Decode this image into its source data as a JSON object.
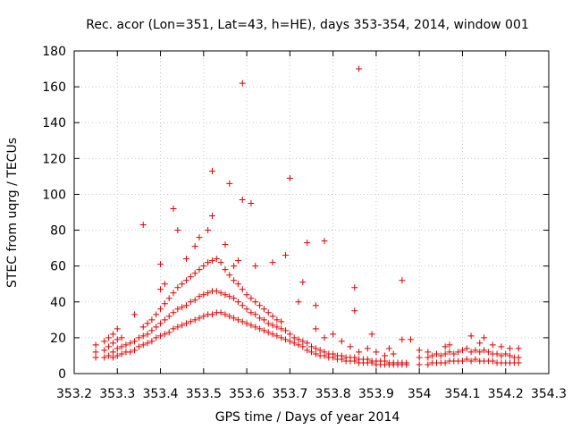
{
  "chart_data": {
    "type": "scatter",
    "title": "Rec. acor (Lon=351, Lat=43, h=HE), days 353-354, 2014, window 001",
    "xlabel": "GPS time / Days of year 2014",
    "ylabel": "STEC from uqrg / TECUs",
    "xlim": [
      353.2,
      354.3
    ],
    "ylim": [
      0,
      180
    ],
    "xticks": [
      353.2,
      353.3,
      353.4,
      353.5,
      353.6,
      353.7,
      353.8,
      353.9,
      354.0,
      354.1,
      354.2,
      354.3
    ],
    "xtick_labels": [
      "353.2",
      "353.3",
      "353.4",
      "353.5",
      "353.6",
      "353.7",
      "353.8",
      "353.9",
      "354",
      "354.1",
      "354.2",
      "354.3"
    ],
    "yticks": [
      0,
      20,
      40,
      60,
      80,
      100,
      120,
      140,
      160,
      180
    ],
    "ytick_labels": [
      "0",
      "20",
      "40",
      "60",
      "80",
      "100",
      "120",
      "140",
      "160",
      "180"
    ],
    "grid": true,
    "marker": "+",
    "series": [
      {
        "name": "STEC",
        "color": "#e00000",
        "points": [
          [
            353.25,
            9
          ],
          [
            353.25,
            12
          ],
          [
            353.25,
            16
          ],
          [
            353.27,
            9
          ],
          [
            353.27,
            13
          ],
          [
            353.27,
            18
          ],
          [
            353.28,
            10
          ],
          [
            353.28,
            15
          ],
          [
            353.28,
            20
          ],
          [
            353.29,
            9
          ],
          [
            353.29,
            12
          ],
          [
            353.29,
            17
          ],
          [
            353.29,
            22
          ],
          [
            353.3,
            10
          ],
          [
            353.3,
            14
          ],
          [
            353.3,
            19
          ],
          [
            353.3,
            25
          ],
          [
            353.31,
            11
          ],
          [
            353.31,
            15
          ],
          [
            353.31,
            20
          ],
          [
            353.32,
            12
          ],
          [
            353.32,
            16
          ],
          [
            353.33,
            12
          ],
          [
            353.33,
            17
          ],
          [
            353.34,
            13
          ],
          [
            353.34,
            18
          ],
          [
            353.35,
            15
          ],
          [
            353.35,
            20
          ],
          [
            353.36,
            16
          ],
          [
            353.36,
            21
          ],
          [
            353.36,
            26
          ],
          [
            353.37,
            17
          ],
          [
            353.37,
            22
          ],
          [
            353.37,
            28
          ],
          [
            353.38,
            18
          ],
          [
            353.38,
            24
          ],
          [
            353.38,
            30
          ],
          [
            353.39,
            20
          ],
          [
            353.39,
            26
          ],
          [
            353.39,
            33
          ],
          [
            353.4,
            21
          ],
          [
            353.4,
            28
          ],
          [
            353.4,
            36
          ],
          [
            353.4,
            47
          ],
          [
            353.41,
            22
          ],
          [
            353.41,
            30
          ],
          [
            353.41,
            39
          ],
          [
            353.41,
            50
          ],
          [
            353.42,
            23
          ],
          [
            353.42,
            32
          ],
          [
            353.42,
            42
          ],
          [
            353.43,
            25
          ],
          [
            353.43,
            34
          ],
          [
            353.43,
            45
          ],
          [
            353.44,
            26
          ],
          [
            353.44,
            36
          ],
          [
            353.44,
            48
          ],
          [
            353.45,
            27
          ],
          [
            353.45,
            37
          ],
          [
            353.45,
            50
          ],
          [
            353.46,
            28
          ],
          [
            353.46,
            38
          ],
          [
            353.46,
            52
          ],
          [
            353.47,
            29
          ],
          [
            353.47,
            40
          ],
          [
            353.47,
            54
          ],
          [
            353.48,
            30
          ],
          [
            353.48,
            41
          ],
          [
            353.48,
            56
          ],
          [
            353.49,
            31
          ],
          [
            353.49,
            43
          ],
          [
            353.49,
            58
          ],
          [
            353.5,
            32
          ],
          [
            353.5,
            44
          ],
          [
            353.5,
            60
          ],
          [
            353.51,
            33
          ],
          [
            353.51,
            45
          ],
          [
            353.51,
            62
          ],
          [
            353.52,
            33
          ],
          [
            353.52,
            46
          ],
          [
            353.52,
            63
          ],
          [
            353.53,
            34
          ],
          [
            353.53,
            46
          ],
          [
            353.53,
            64
          ],
          [
            353.54,
            34
          ],
          [
            353.54,
            45
          ],
          [
            353.54,
            62
          ],
          [
            353.55,
            33
          ],
          [
            353.55,
            44
          ],
          [
            353.55,
            58
          ],
          [
            353.56,
            32
          ],
          [
            353.56,
            43
          ],
          [
            353.56,
            55
          ],
          [
            353.57,
            31
          ],
          [
            353.57,
            42
          ],
          [
            353.57,
            52
          ],
          [
            353.58,
            30
          ],
          [
            353.58,
            40
          ],
          [
            353.58,
            50
          ],
          [
            353.59,
            29
          ],
          [
            353.59,
            38
          ],
          [
            353.59,
            47
          ],
          [
            353.6,
            28
          ],
          [
            353.6,
            36
          ],
          [
            353.6,
            44
          ],
          [
            353.61,
            27
          ],
          [
            353.61,
            34
          ],
          [
            353.61,
            42
          ],
          [
            353.62,
            26
          ],
          [
            353.62,
            33
          ],
          [
            353.62,
            40
          ],
          [
            353.63,
            25
          ],
          [
            353.63,
            31
          ],
          [
            353.63,
            38
          ],
          [
            353.64,
            24
          ],
          [
            353.64,
            30
          ],
          [
            353.64,
            36
          ],
          [
            353.65,
            23
          ],
          [
            353.65,
            28
          ],
          [
            353.65,
            34
          ],
          [
            353.66,
            22
          ],
          [
            353.66,
            27
          ],
          [
            353.66,
            32
          ],
          [
            353.67,
            21
          ],
          [
            353.67,
            26
          ],
          [
            353.67,
            30
          ],
          [
            353.68,
            20
          ],
          [
            353.68,
            25
          ],
          [
            353.68,
            29
          ],
          [
            353.69,
            19
          ],
          [
            353.69,
            24
          ],
          [
            353.7,
            18
          ],
          [
            353.7,
            22
          ],
          [
            353.71,
            17
          ],
          [
            353.71,
            20
          ],
          [
            353.72,
            16
          ],
          [
            353.72,
            19
          ],
          [
            353.73,
            15
          ],
          [
            353.73,
            18
          ],
          [
            353.74,
            13
          ],
          [
            353.74,
            17
          ],
          [
            353.75,
            12
          ],
          [
            353.75,
            15
          ],
          [
            353.76,
            11
          ],
          [
            353.76,
            14
          ],
          [
            353.77,
            10
          ],
          [
            353.77,
            13
          ],
          [
            353.78,
            10
          ],
          [
            353.78,
            12
          ],
          [
            353.79,
            9
          ],
          [
            353.79,
            11
          ],
          [
            353.8,
            9
          ],
          [
            353.8,
            11
          ],
          [
            353.81,
            8
          ],
          [
            353.81,
            10
          ],
          [
            353.82,
            8
          ],
          [
            353.82,
            10
          ],
          [
            353.83,
            7
          ],
          [
            353.83,
            9
          ],
          [
            353.84,
            7
          ],
          [
            353.84,
            9
          ],
          [
            353.85,
            7
          ],
          [
            353.85,
            9
          ],
          [
            353.86,
            6
          ],
          [
            353.86,
            8
          ],
          [
            353.87,
            6
          ],
          [
            353.87,
            8
          ],
          [
            353.88,
            6
          ],
          [
            353.88,
            8
          ],
          [
            353.89,
            6
          ],
          [
            353.89,
            7
          ],
          [
            353.9,
            5
          ],
          [
            353.9,
            7
          ],
          [
            353.91,
            5
          ],
          [
            353.91,
            7
          ],
          [
            353.92,
            5
          ],
          [
            353.92,
            7
          ],
          [
            353.93,
            5
          ],
          [
            353.93,
            6
          ],
          [
            353.94,
            5
          ],
          [
            353.94,
            6
          ],
          [
            353.95,
            5
          ],
          [
            353.95,
            6
          ],
          [
            353.96,
            5
          ],
          [
            353.96,
            6
          ],
          [
            353.97,
            5
          ],
          [
            353.97,
            6
          ],
          [
            353.34,
            33
          ],
          [
            353.36,
            83
          ],
          [
            353.4,
            61
          ],
          [
            353.43,
            92
          ],
          [
            353.44,
            80
          ],
          [
            353.46,
            64
          ],
          [
            353.48,
            71
          ],
          [
            353.49,
            76
          ],
          [
            353.51,
            80
          ],
          [
            353.52,
            88
          ],
          [
            353.52,
            113
          ],
          [
            353.55,
            72
          ],
          [
            353.56,
            106
          ],
          [
            353.57,
            60
          ],
          [
            353.58,
            63
          ],
          [
            353.59,
            162
          ],
          [
            353.59,
            97
          ],
          [
            353.61,
            95
          ],
          [
            353.62,
            60
          ],
          [
            353.66,
            62
          ],
          [
            353.69,
            66
          ],
          [
            353.7,
            109
          ],
          [
            353.72,
            40
          ],
          [
            353.73,
            51
          ],
          [
            353.74,
            73
          ],
          [
            353.76,
            38
          ],
          [
            353.78,
            74
          ],
          [
            353.85,
            48
          ],
          [
            353.85,
            35
          ],
          [
            353.86,
            170
          ],
          [
            353.96,
            52
          ],
          [
            353.76,
            25
          ],
          [
            353.78,
            20
          ],
          [
            353.8,
            22
          ],
          [
            353.82,
            18
          ],
          [
            353.84,
            15
          ],
          [
            353.86,
            12
          ],
          [
            353.88,
            14
          ],
          [
            353.9,
            12
          ],
          [
            353.92,
            10
          ],
          [
            353.94,
            11
          ],
          [
            353.96,
            19
          ],
          [
            353.98,
            19
          ],
          [
            353.93,
            14
          ],
          [
            353.89,
            22
          ],
          [
            354.0,
            5
          ],
          [
            354.0,
            9
          ],
          [
            354.0,
            13
          ],
          [
            354.02,
            5
          ],
          [
            354.02,
            9
          ],
          [
            354.02,
            12
          ],
          [
            354.03,
            6
          ],
          [
            354.03,
            10
          ],
          [
            354.04,
            6
          ],
          [
            354.04,
            11
          ],
          [
            354.05,
            6
          ],
          [
            354.05,
            10
          ],
          [
            354.06,
            6
          ],
          [
            354.06,
            11
          ],
          [
            354.06,
            15
          ],
          [
            354.07,
            7
          ],
          [
            354.07,
            12
          ],
          [
            354.08,
            7
          ],
          [
            354.08,
            11
          ],
          [
            354.09,
            7
          ],
          [
            354.09,
            12
          ],
          [
            354.1,
            7
          ],
          [
            354.1,
            13
          ],
          [
            354.11,
            8
          ],
          [
            354.11,
            14
          ],
          [
            354.12,
            7
          ],
          [
            354.12,
            12
          ],
          [
            354.13,
            8
          ],
          [
            354.13,
            13
          ],
          [
            354.14,
            7
          ],
          [
            354.14,
            12
          ],
          [
            354.15,
            7
          ],
          [
            354.15,
            13
          ],
          [
            354.16,
            7
          ],
          [
            354.16,
            12
          ],
          [
            354.17,
            7
          ],
          [
            354.17,
            11
          ],
          [
            354.18,
            6
          ],
          [
            354.18,
            11
          ],
          [
            354.19,
            6
          ],
          [
            354.19,
            10
          ],
          [
            354.2,
            6
          ],
          [
            354.2,
            11
          ],
          [
            354.21,
            6
          ],
          [
            354.21,
            10
          ],
          [
            354.22,
            6
          ],
          [
            354.22,
            9
          ],
          [
            354.23,
            6
          ],
          [
            354.23,
            9
          ],
          [
            354.07,
            16
          ],
          [
            354.12,
            21
          ],
          [
            354.14,
            17
          ],
          [
            354.15,
            20
          ],
          [
            354.17,
            16
          ],
          [
            354.19,
            15
          ],
          [
            354.21,
            14
          ],
          [
            354.23,
            14
          ]
        ]
      }
    ]
  }
}
